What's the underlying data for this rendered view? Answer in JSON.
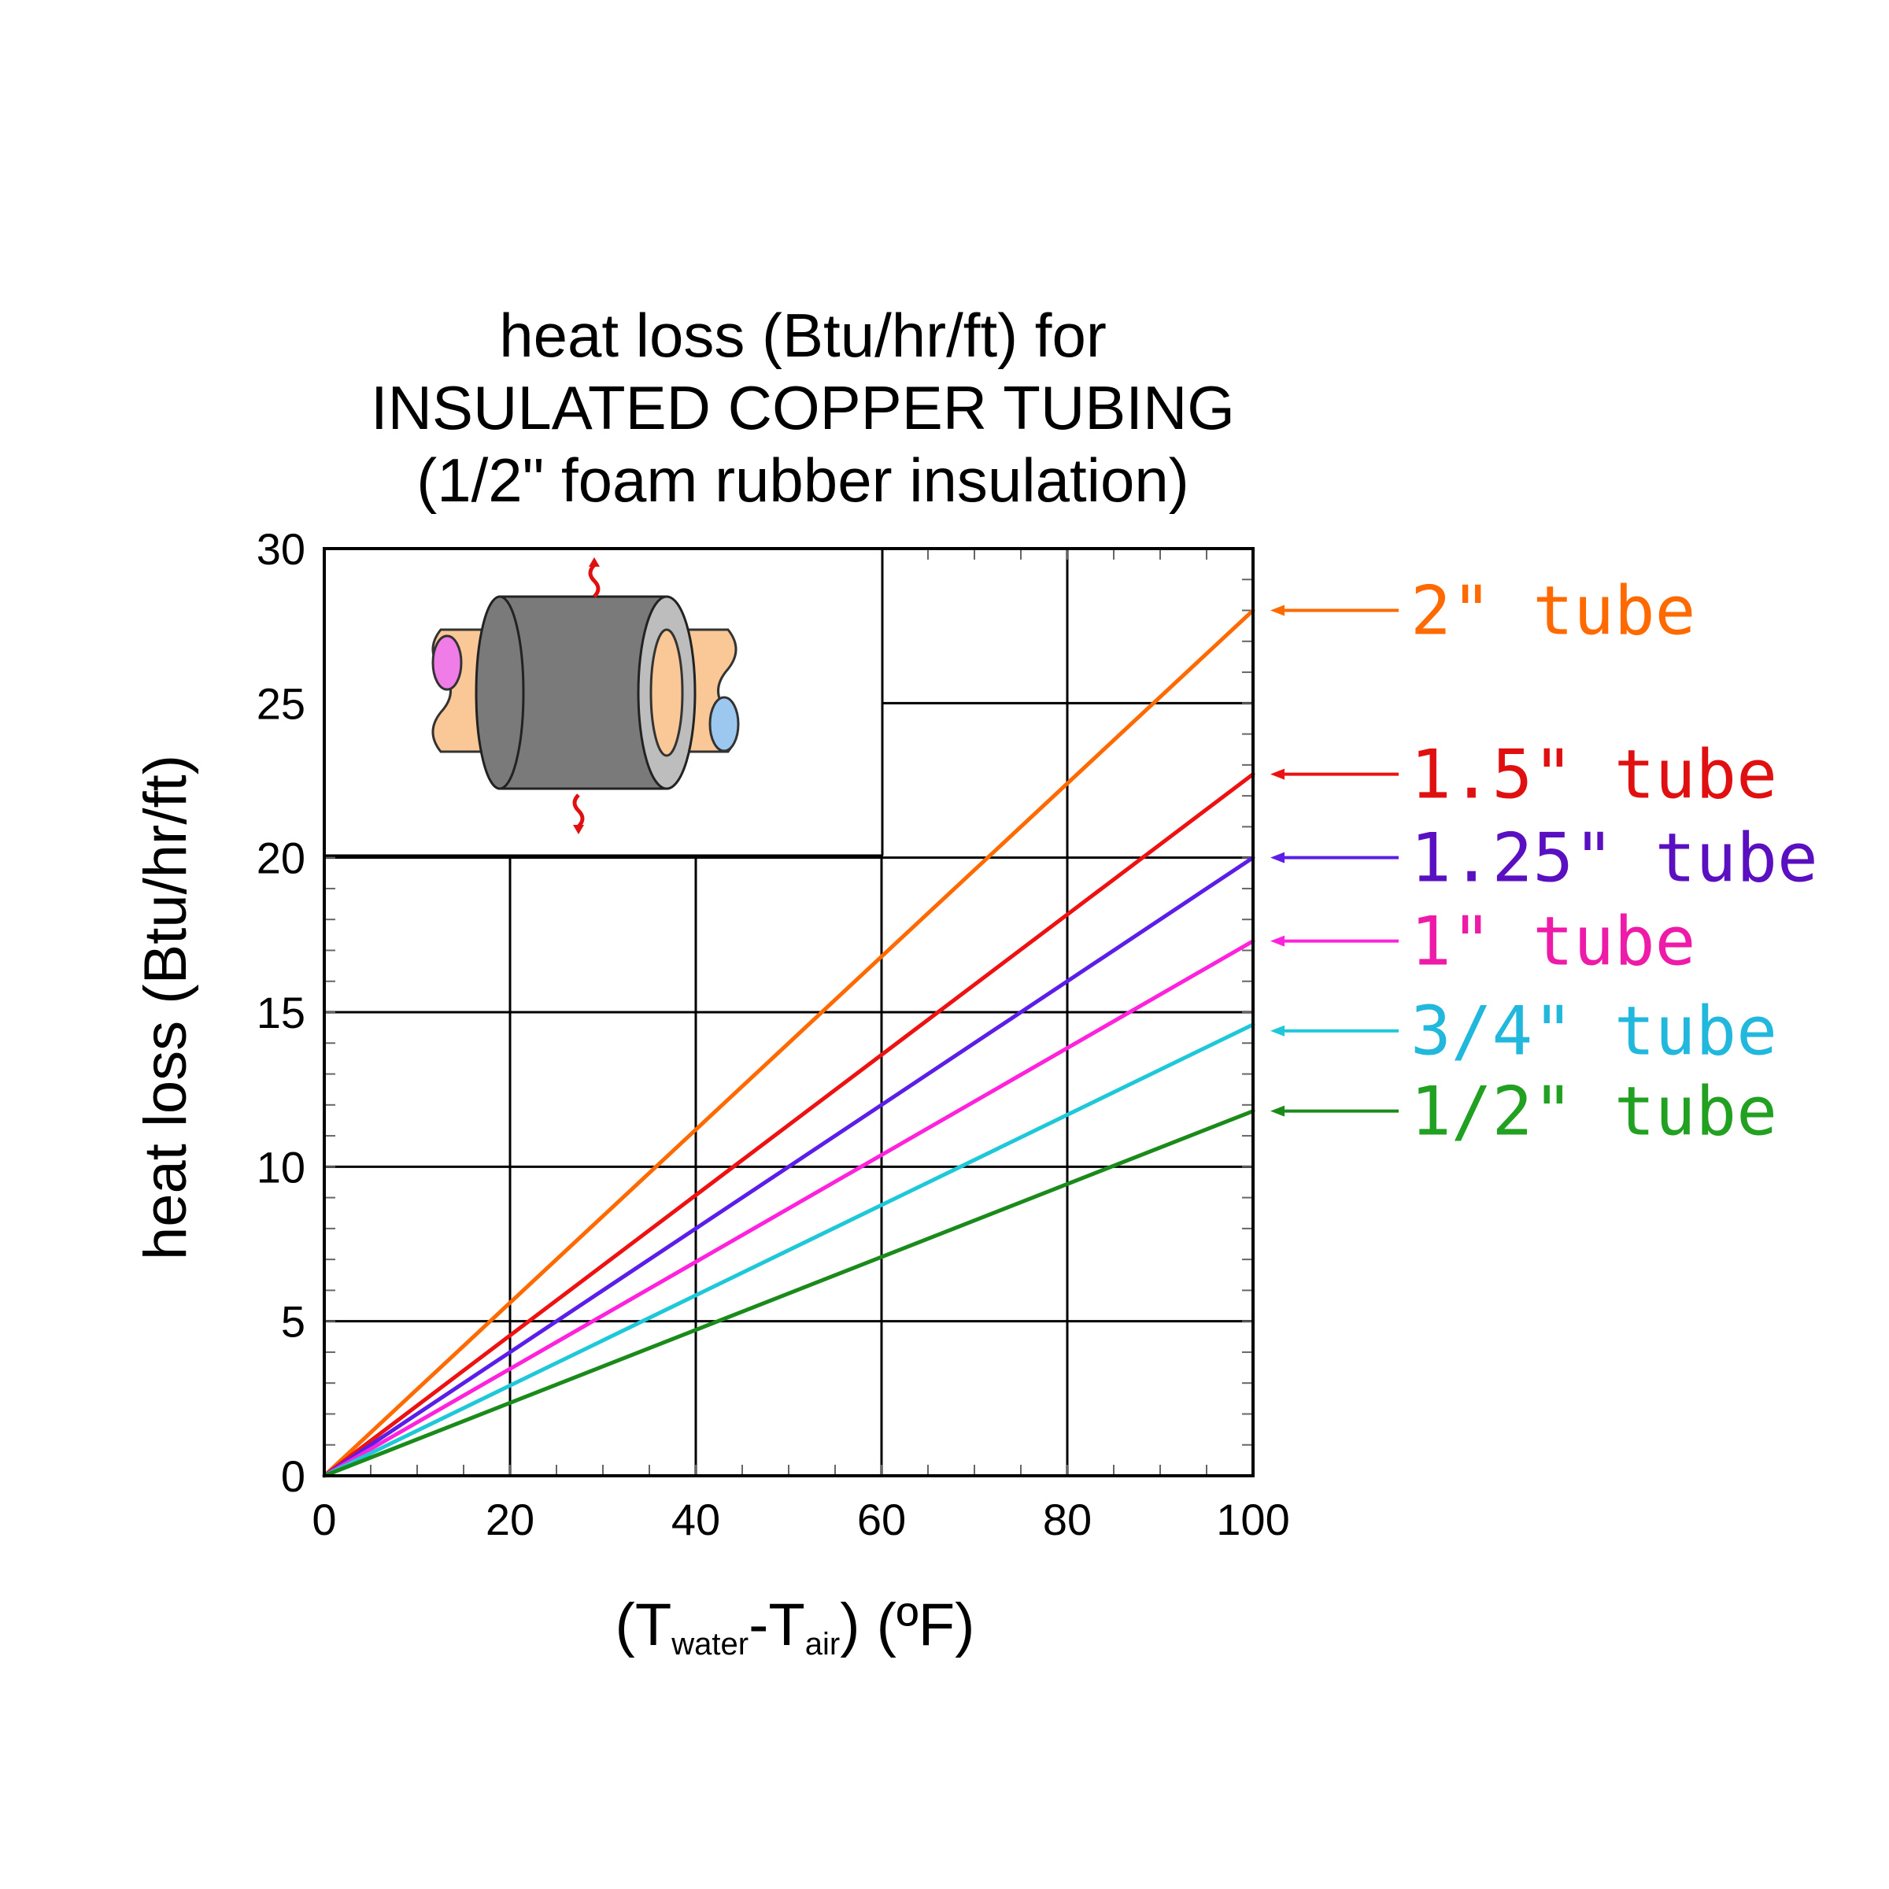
{
  "chart_data": {
    "type": "line",
    "title_lines": [
      "heat loss (Btu/hr/ft) for",
      "INSULATED COPPER TUBING",
      "(1/2\" foam rubber insulation)"
    ],
    "ylabel": "heat loss (Btu/hr/ft)",
    "xlabel": {
      "open": "(T",
      "sub1": "water",
      "dash": "-T",
      "sub2": "air",
      "close": ") (ºF)"
    },
    "xlim": [
      0,
      100
    ],
    "ylim": [
      0,
      30
    ],
    "x_ticks": [
      "0",
      "20",
      "40",
      "60",
      "80",
      "100"
    ],
    "y_ticks": [
      "0",
      "5",
      "10",
      "15",
      "20",
      "25",
      "30"
    ],
    "grid": true,
    "legend_placement": "right",
    "series": [
      {
        "name": "2\" tube",
        "color": "#ff6a00",
        "x": [
          0,
          100
        ],
        "y": [
          0,
          28.0
        ]
      },
      {
        "name": "1.5\" tube",
        "color": "#ee1111",
        "x": [
          0,
          100
        ],
        "y": [
          0,
          22.7
        ]
      },
      {
        "name": "1.25\" tube",
        "color": "#5a1ee8",
        "x": [
          0,
          100
        ],
        "y": [
          0,
          20.0
        ]
      },
      {
        "name": "1\" tube",
        "color": "#ff22dd",
        "x": [
          0,
          100
        ],
        "y": [
          0,
          17.3
        ]
      },
      {
        "name": "3/4\" tube",
        "color": "#1fc8d8",
        "x": [
          0,
          100
        ],
        "y": [
          0,
          14.6
        ]
      },
      {
        "name": "1/2\" tube",
        "color": "#1a8a1a",
        "x": [
          0,
          100
        ],
        "y": [
          0,
          11.8
        ]
      }
    ],
    "legend_text_colors": [
      "#ff6a00",
      "#e01010",
      "#5a10c0",
      "#ee1aa8",
      "#22b8dd",
      "#22a022"
    ],
    "inset_icon": "insulated-pipe-icon"
  }
}
